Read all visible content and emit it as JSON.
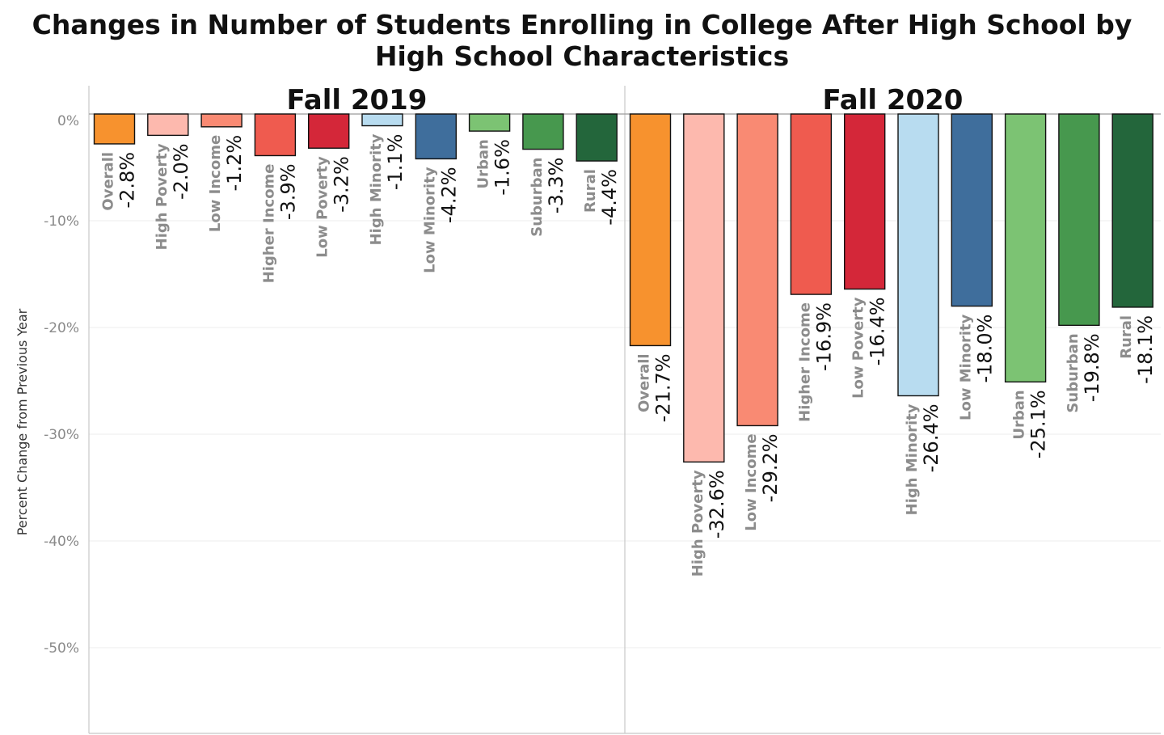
{
  "chart_data": {
    "type": "bar",
    "title": "Changes in Number of Students Enrolling in College After High School by High School Characteristics",
    "title_lines": [
      "Changes in Number of Students Enrolling in College After High School by",
      "High School Characteristics"
    ],
    "ylabel": "Percent Change from Previous Year",
    "xlabel": "",
    "ylim": [
      -0.58,
      0.02
    ],
    "yticks": [
      0,
      -10,
      -20,
      -30,
      -40,
      -50
    ],
    "ytick_labels": [
      "0%",
      "-10%",
      "-20%",
      "-30%",
      "-40%",
      "-50%"
    ],
    "grid": true,
    "categories": [
      "Overall",
      "High Poverty",
      "Low Income",
      "Higher Income",
      "Low Poverty",
      "High Minority",
      "Low Minority",
      "Urban",
      "Suburban",
      "Rural"
    ],
    "colors": [
      "#F7922E",
      "#FDB9AE",
      "#F98A73",
      "#EF5B4F",
      "#D42739",
      "#B8DCF0",
      "#3F6E9C",
      "#7CC373",
      "#47984E",
      "#23663B"
    ],
    "panels": [
      {
        "name": "Fall 2019",
        "values": [
          -2.8,
          -2.0,
          -1.2,
          -3.9,
          -3.2,
          -1.1,
          -4.2,
          -1.6,
          -3.3,
          -4.4
        ],
        "value_labels": [
          "-2.8%",
          "-2.0%",
          "-1.2%",
          "-3.9%",
          "-3.2%",
          "-1.1%",
          "-4.2%",
          "-1.6%",
          "-3.3%",
          "-4.4%"
        ]
      },
      {
        "name": "Fall 2020",
        "values": [
          -21.7,
          -32.6,
          -29.2,
          -16.9,
          -16.4,
          -26.4,
          -18.0,
          -25.1,
          -19.8,
          -18.1
        ],
        "value_labels": [
          "-21.7%",
          "-32.6%",
          "-29.2%",
          "-16.9%",
          "-16.4%",
          "-26.4%",
          "-18.0%",
          "-25.1%",
          "-19.8%",
          "-18.1%"
        ]
      }
    ]
  }
}
